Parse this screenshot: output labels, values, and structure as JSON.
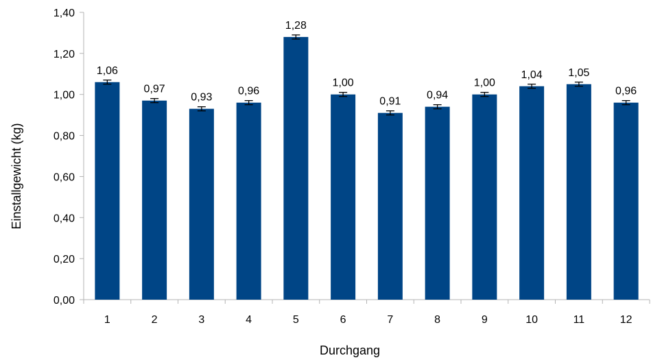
{
  "chart_data": {
    "type": "bar",
    "title": "",
    "xlabel": "Durchgang",
    "ylabel": "Einstallgewicht (kg)",
    "categories": [
      "1",
      "2",
      "3",
      "4",
      "5",
      "6",
      "7",
      "8",
      "9",
      "10",
      "11",
      "12"
    ],
    "values": [
      1.06,
      0.97,
      0.93,
      0.96,
      1.28,
      1.0,
      0.91,
      0.94,
      1.0,
      1.04,
      1.05,
      0.96
    ],
    "value_labels": [
      "1,06",
      "0,97",
      "0,93",
      "0,96",
      "1,28",
      "1,00",
      "0,91",
      "0,94",
      "1,00",
      "1,04",
      "1,05",
      "0,96"
    ],
    "error": [
      0.01,
      0.01,
      0.01,
      0.01,
      0.01,
      0.01,
      0.01,
      0.01,
      0.01,
      0.01,
      0.01,
      0.01
    ],
    "ylim": [
      0,
      1.4
    ],
    "yticks": [
      0,
      0.2,
      0.4,
      0.6,
      0.8,
      1.0,
      1.2,
      1.4
    ],
    "ytick_labels": [
      "0,00",
      "0,20",
      "0,40",
      "0,60",
      "0,80",
      "1,00",
      "1,20",
      "1,40"
    ],
    "grid": false,
    "bar_color": "#004586",
    "axis_color": "#b3b3b3"
  }
}
